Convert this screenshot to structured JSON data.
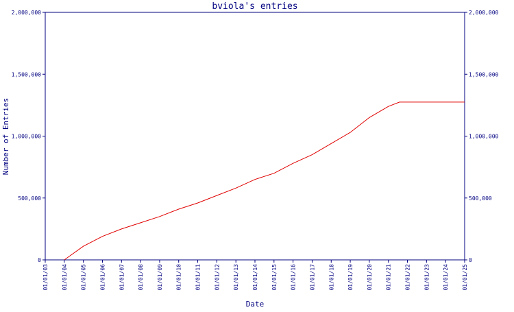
{
  "chart_data": {
    "type": "line",
    "title": "bviola's entries",
    "xlabel": "Date",
    "ylabel": "Number of Entries",
    "y_ticks": [
      0,
      500000,
      1000000,
      1500000,
      2000000
    ],
    "y_tick_labels": [
      "0",
      "500,000",
      "1,000,000",
      "1,500,000",
      "2,000,000"
    ],
    "ylim": [
      0,
      2000000
    ],
    "x_ticks": [
      "01/01/03",
      "01/01/04",
      "01/01/05",
      "01/01/06",
      "01/01/07",
      "01/01/08",
      "01/01/09",
      "01/01/10",
      "01/01/11",
      "01/01/12",
      "01/01/13",
      "01/01/14",
      "01/01/15",
      "01/01/16",
      "01/01/17",
      "01/01/18",
      "01/01/19",
      "01/01/20",
      "01/01/21",
      "01/01/22",
      "01/01/23",
      "01/01/24",
      "01/01/25"
    ],
    "xlim": [
      "2003-01-01",
      "2025-01-01"
    ],
    "grid": false,
    "colors": {
      "line": "#e00000",
      "axis": "#000080",
      "text": "#000080"
    },
    "series": [
      {
        "x": [
          "2004-01-01",
          "2005-01-01",
          "2006-01-01",
          "2007-01-01",
          "2008-01-01",
          "2009-01-01",
          "2010-01-01",
          "2011-01-01",
          "2012-01-01",
          "2013-01-01",
          "2014-01-01",
          "2015-01-01",
          "2016-01-01",
          "2017-01-01",
          "2018-01-01",
          "2019-01-01",
          "2020-01-01",
          "2021-01-01",
          "2021-08-01",
          "2022-01-01",
          "2023-01-01",
          "2024-01-01",
          "2024-12-31"
        ],
        "y": [
          0,
          110000,
          190000,
          250000,
          300000,
          350000,
          410000,
          460000,
          520000,
          580000,
          650000,
          700000,
          780000,
          850000,
          940000,
          1030000,
          1150000,
          1240000,
          1275000,
          1275000,
          1275000,
          1275000,
          1275000
        ]
      }
    ]
  }
}
